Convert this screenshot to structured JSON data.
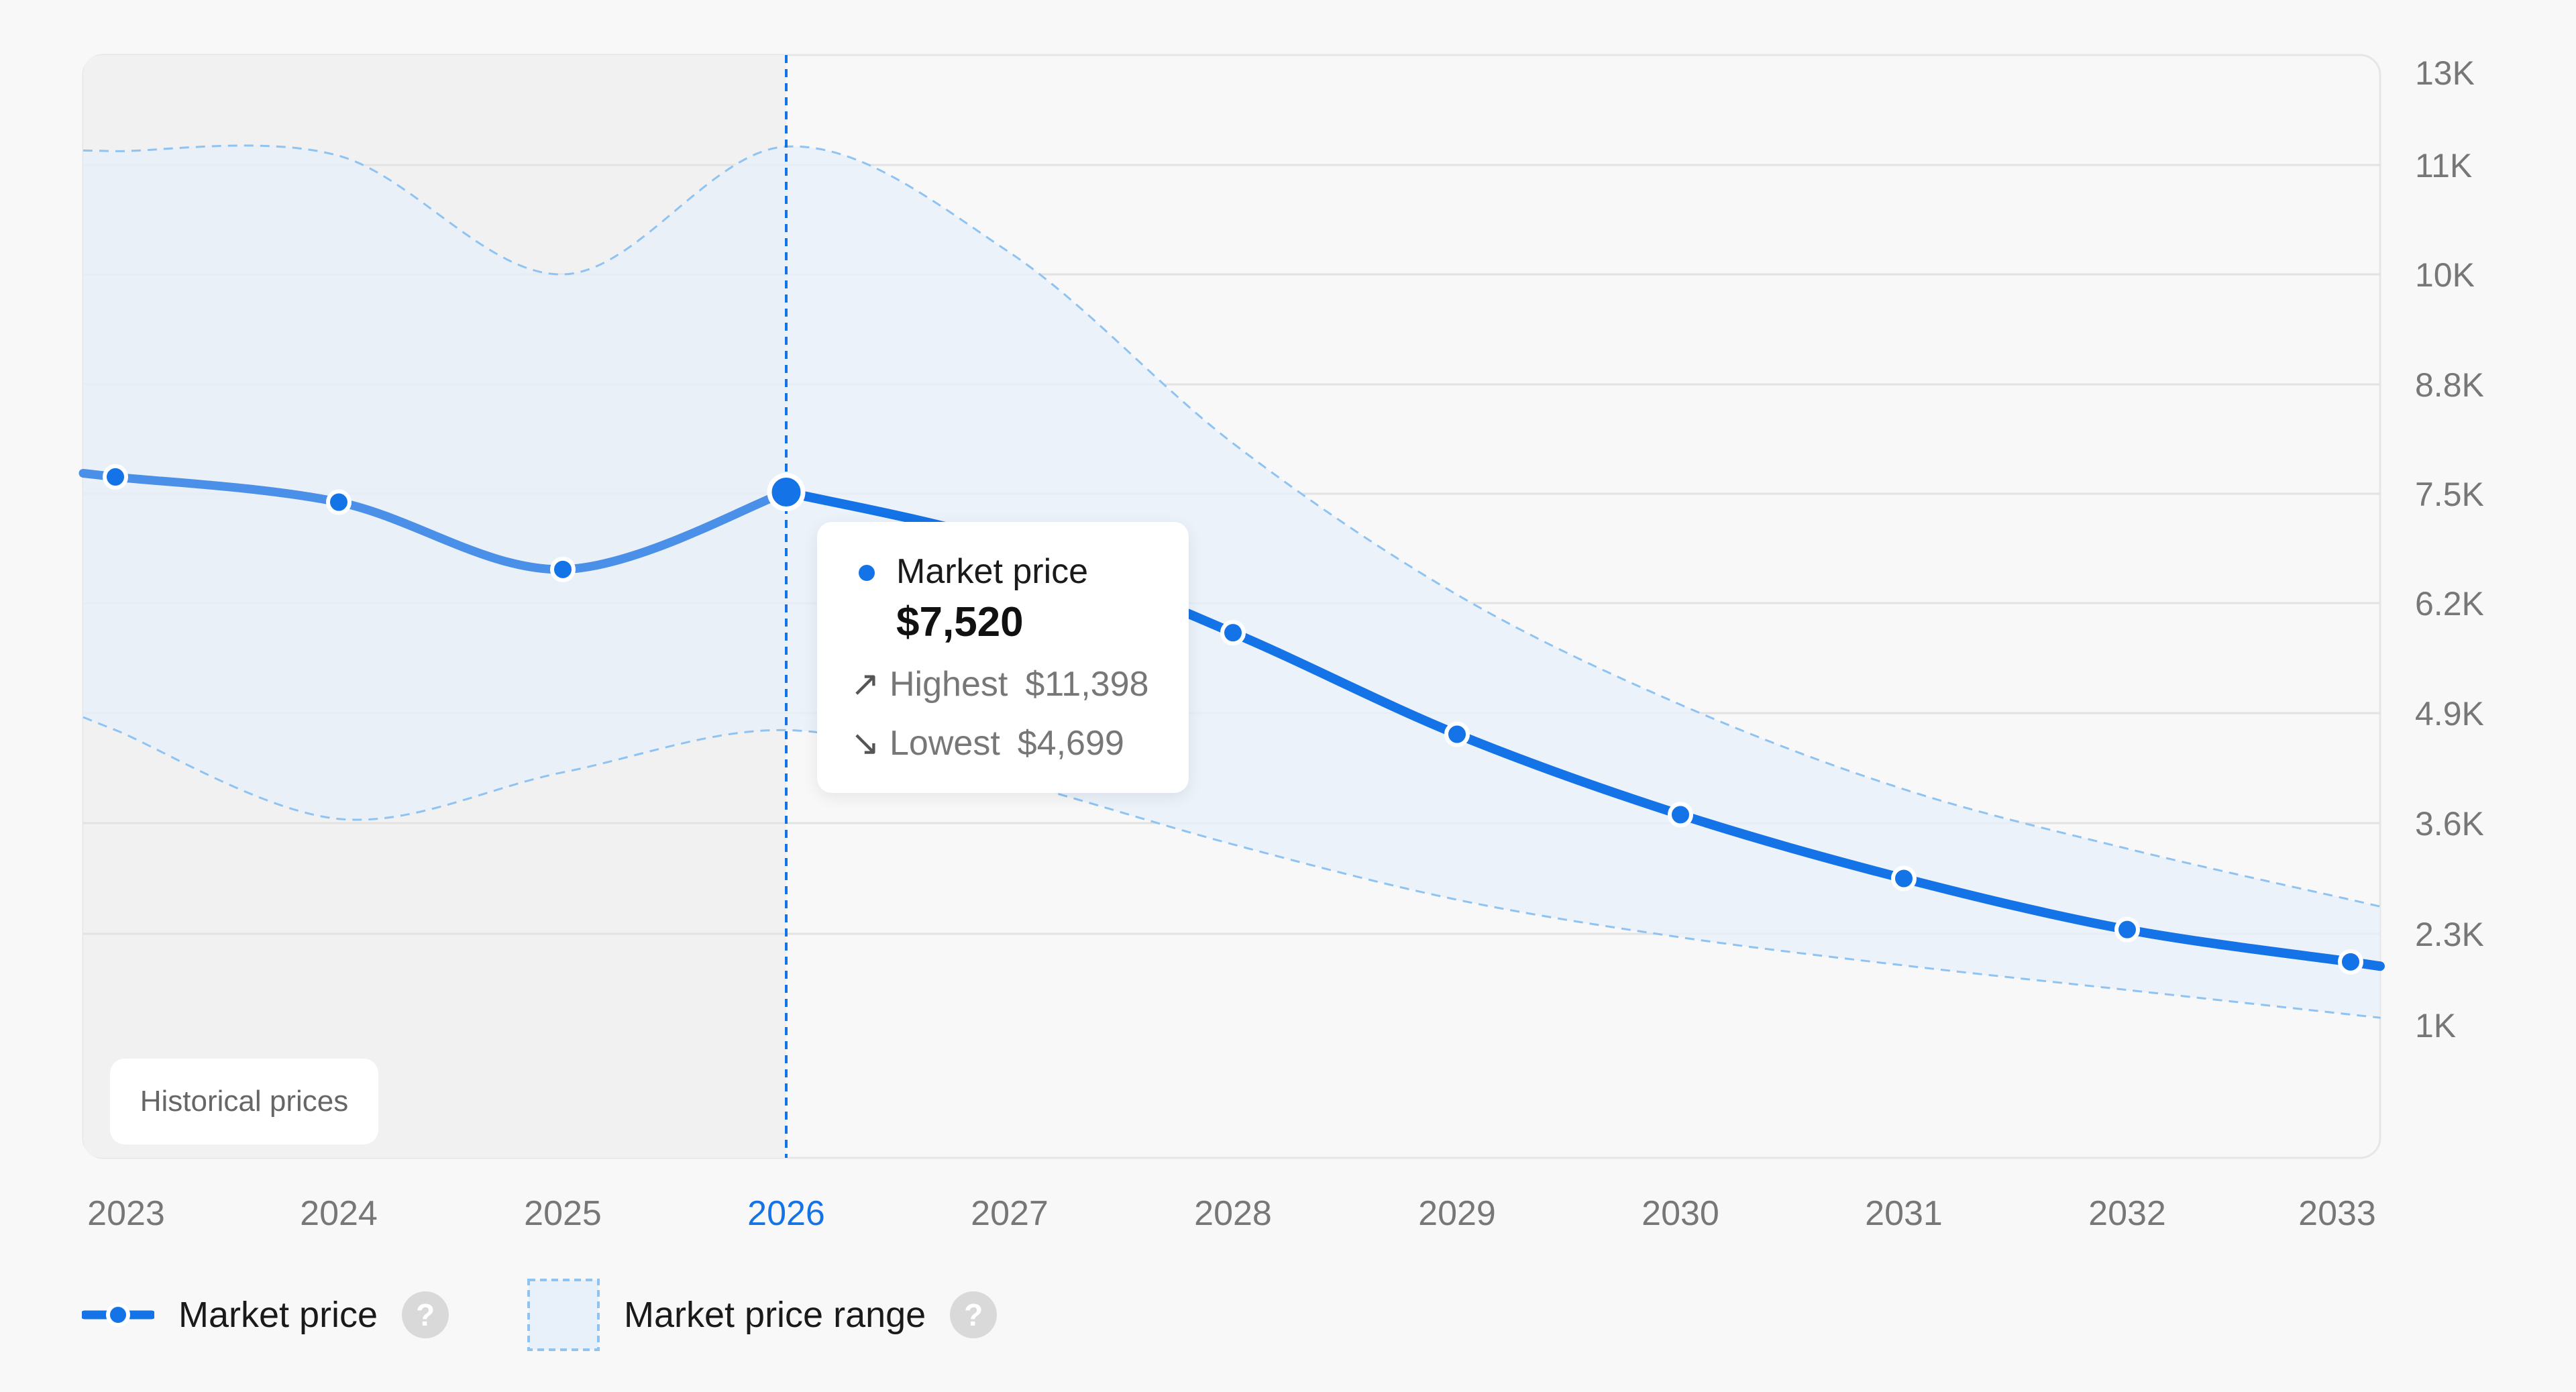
{
  "chart_data": {
    "type": "line",
    "x": [
      "2023",
      "2024",
      "2025",
      "2026",
      "2027",
      "2028",
      "2029",
      "2030",
      "2031",
      "2032",
      "2033"
    ],
    "y_ticks": [
      "13K",
      "11K",
      "10K",
      "8.8K",
      "7.5K",
      "6.2K",
      "4.9K",
      "3.6K",
      "2.3K",
      "1K"
    ],
    "series": [
      {
        "name": "Market price",
        "values": [
          7700,
          7400,
          6600,
          7520,
          6900,
          5850,
          4650,
          3700,
          2950,
          2350,
          1900
        ]
      }
    ],
    "range": {
      "name": "Market price range",
      "high": [
        11300,
        11200,
        10000,
        11398,
        10200,
        8100,
        6300,
        5000,
        4000,
        3300,
        2700
      ],
      "low": [
        4700,
        3650,
        4200,
        4699,
        4100,
        3350,
        2700,
        2250,
        1850,
        1500,
        1150
      ]
    },
    "highlighted_year": "2026",
    "historical_years": [
      "2023",
      "2024",
      "2025",
      "2026"
    ],
    "grid": true,
    "legend_position": "bottom-left",
    "colors": {
      "line": "#1473e6",
      "history_line": "#4a8fe8",
      "range_fill": "#e8f0fa",
      "range_border": "#8fc3f2",
      "history_background": "#f1f1f1",
      "highlight_text": "#1473e6"
    }
  },
  "tooltip": {
    "title": "Market price",
    "value": "$7,520",
    "highest_label": "Highest",
    "highest_value": "$11,398",
    "lowest_label": "Lowest",
    "lowest_value": "$4,699",
    "up_arrow_icon": "↗",
    "down_arrow_icon": "↘"
  },
  "historical_label": "Historical prices",
  "legend": {
    "market_price": "Market price",
    "market_price_range": "Market price range",
    "help_glyph": "?"
  }
}
